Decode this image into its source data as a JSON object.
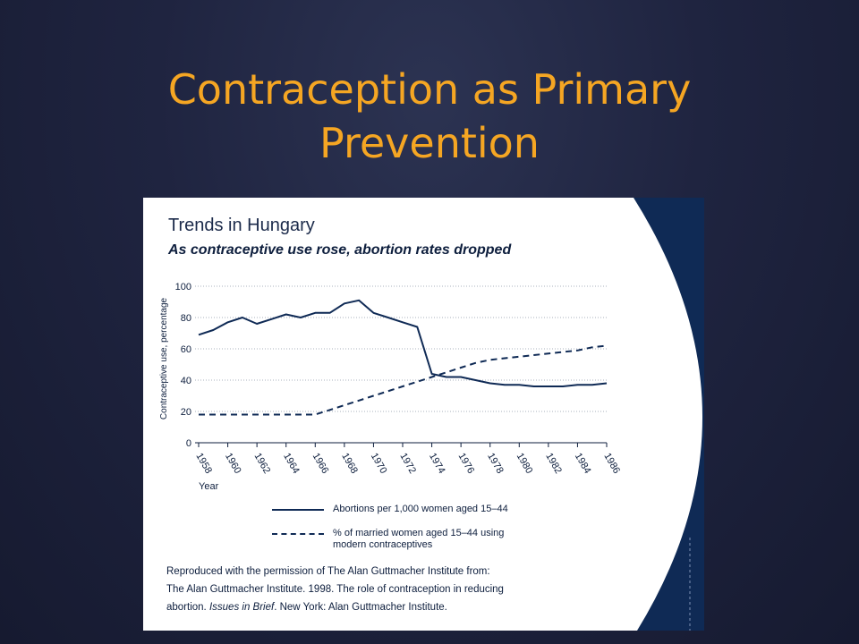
{
  "slide": {
    "title_line1": "Contraception as Primary",
    "title_line2": "Prevention"
  },
  "figure": {
    "title": "Trends in Hungary",
    "subtitle": "As contraceptive use rose, abortion rates dropped",
    "citation": {
      "line1": "Reproduced with the permission of The Alan Guttmacher Institute from:",
      "line2": "The Alan Guttmacher Institute. 1998. The role of contraception in reducing",
      "line3_a": "abortion. ",
      "line3_b": "Issues in Brief",
      "line3_c": ". New York: Alan Guttmacher Institute."
    },
    "colors": {
      "navy": "#0f2a55",
      "slide_bg": "#1f2440",
      "title_orange": "#f5a623"
    }
  },
  "chart_data": {
    "type": "line",
    "title": "Trends in Hungary",
    "subtitle": "As contraceptive use rose, abortion rates dropped",
    "xlabel": "Year",
    "ylabel": "Contraceptive use, percentage",
    "ylim": [
      0,
      100
    ],
    "yticks": [
      0,
      20,
      40,
      60,
      80,
      100
    ],
    "xticks": [
      "1958",
      "1960",
      "1962",
      "1964",
      "1966",
      "1968",
      "1970",
      "1972",
      "1974",
      "1976",
      "1978",
      "1980",
      "1982",
      "1984",
      "1986"
    ],
    "grid": true,
    "legend_position": "bottom",
    "series": [
      {
        "name": "Abortions per 1,000 women aged 15–44",
        "style": "solid",
        "x": [
          1958,
          1959,
          1960,
          1961,
          1962,
          1963,
          1964,
          1965,
          1966,
          1967,
          1968,
          1969,
          1970,
          1971,
          1972,
          1973,
          1974,
          1975,
          1976,
          1977,
          1978,
          1979,
          1980,
          1981,
          1982,
          1983,
          1984,
          1985,
          1986
        ],
        "values": [
          69,
          72,
          77,
          80,
          76,
          79,
          82,
          80,
          83,
          83,
          89,
          91,
          83,
          80,
          77,
          74,
          44,
          42,
          42,
          40,
          38,
          37,
          37,
          36,
          36,
          36,
          37,
          37,
          38
        ]
      },
      {
        "name": "% of married women aged 15–44 using modern contraceptives",
        "style": "dashed",
        "x": [
          1958,
          1959,
          1960,
          1961,
          1962,
          1963,
          1964,
          1965,
          1966,
          1967,
          1968,
          1969,
          1970,
          1971,
          1972,
          1973,
          1974,
          1975,
          1976,
          1977,
          1978,
          1979,
          1980,
          1981,
          1982,
          1983,
          1984,
          1985,
          1986
        ],
        "values": [
          18,
          18,
          18,
          18,
          18,
          18,
          18,
          18,
          18,
          21,
          24,
          27,
          30,
          33,
          36,
          39,
          42,
          45,
          48,
          51,
          53,
          54,
          55,
          56,
          57,
          58,
          59,
          61,
          62
        ]
      }
    ]
  }
}
